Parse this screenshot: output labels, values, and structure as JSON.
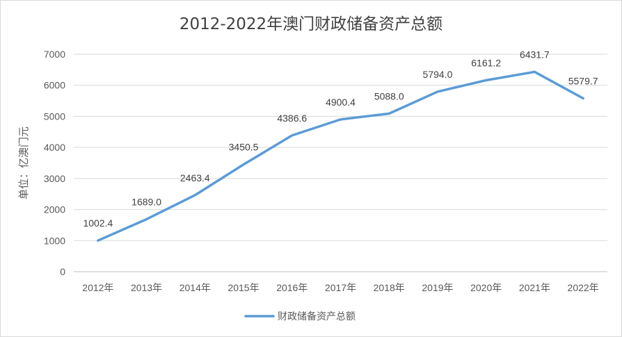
{
  "chart_data": {
    "type": "line",
    "title": "2012-2022年澳门财政储备资产总额",
    "ylabel": "单位：亿澳门元",
    "xlabel": "",
    "categories": [
      "2012年",
      "2013年",
      "2014年",
      "2015年",
      "2016年",
      "2017年",
      "2018年",
      "2019年",
      "2020年",
      "2021年",
      "2022年"
    ],
    "series": [
      {
        "name": "财政储备资产总额",
        "values": [
          1002.4,
          1689.0,
          2463.4,
          3450.5,
          4386.6,
          4900.4,
          5088.0,
          5794.0,
          6161.2,
          6431.7,
          5579.7
        ],
        "labels": [
          "1002.4",
          "1689.0",
          "2463.4",
          "3450.5",
          "4386.6",
          "4900.4",
          "5088.0",
          "5794.0",
          "6161.2",
          "6431.7",
          "5579.7"
        ],
        "color": "#5b9bd5"
      }
    ],
    "yticks": [
      "0",
      "1000",
      "2000",
      "3000",
      "4000",
      "5000",
      "6000",
      "7000"
    ],
    "ylim": [
      0,
      7000
    ],
    "grid": true,
    "legend": "bottom"
  }
}
